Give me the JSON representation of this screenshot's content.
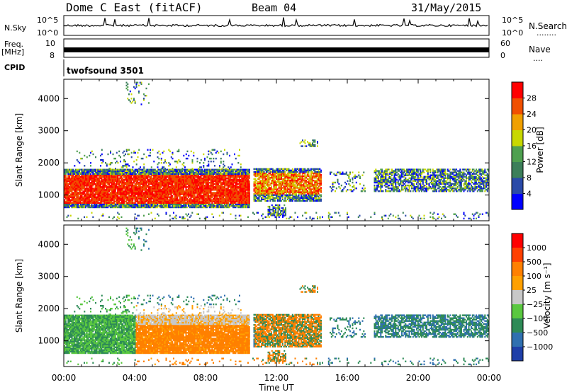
{
  "header": {
    "station": "Dome C East (fitACF)",
    "beam": "Beam 04",
    "date": "31/May/2015"
  },
  "labels": {
    "nsky": "N.Sky",
    "nsearch": "N.Search",
    "nsearch_dots": "........",
    "freq": "Freq.",
    "freq_unit": "[MHz]",
    "nave": "Nave",
    "nave_dots": "....",
    "cpid": "CPID",
    "cpid_value": "twofsound 3501",
    "tick_1e5_left": "10^5",
    "tick_1e0_left": "10^0",
    "tick_1e5_right": "10^5",
    "tick_1e0_right": "10^0",
    "freq_tick_lo": "8",
    "freq_tick_hi": "10",
    "nave_tick_lo": "0",
    "nave_tick_hi": "60"
  },
  "colors": {
    "power": [
      "#0000ff",
      "#2a4aa8",
      "#3c7f5a",
      "#4fa050",
      "#c8d800",
      "#f0a000",
      "#f05000",
      "#ff0000"
    ],
    "velocity": [
      "#ff0000",
      "#ff4000",
      "#ff8000",
      "#ffa000",
      "#c8c8c8",
      "#5ac840",
      "#2e8b57",
      "#3070b0",
      "#1f3fa8"
    ]
  },
  "chart_data": [
    {
      "type": "heatmap",
      "name": "power",
      "ylabel": "Slant Range [km]",
      "xlabel": "",
      "x_ticks": [
        "00:00",
        "04:00",
        "08:00",
        "12:00",
        "16:00",
        "20:00",
        "00:00"
      ],
      "y_ticks": [
        1000,
        2000,
        3000,
        4000
      ],
      "ylim": [
        200,
        4600
      ],
      "colorbar_label": "Power [dB]",
      "colorbar_ticks": [
        "4",
        "8",
        "12",
        "16",
        "20",
        "24",
        "28"
      ],
      "colorbar_range": [
        0,
        30
      ]
    },
    {
      "type": "heatmap",
      "name": "velocity",
      "ylabel": "Slant Range [km]",
      "xlabel": "Time UT",
      "x_ticks": [
        "00:00",
        "04:00",
        "08:00",
        "12:00",
        "16:00",
        "20:00",
        "00:00"
      ],
      "y_ticks": [
        1000,
        2000,
        3000,
        4000
      ],
      "ylim": [
        200,
        4600
      ],
      "colorbar_label": "Velocity [m s⁻¹]",
      "colorbar_ticks": [
        "1000",
        "500",
        "100",
        "25",
        "−25",
        "−100",
        "−500",
        "−1000"
      ]
    }
  ]
}
